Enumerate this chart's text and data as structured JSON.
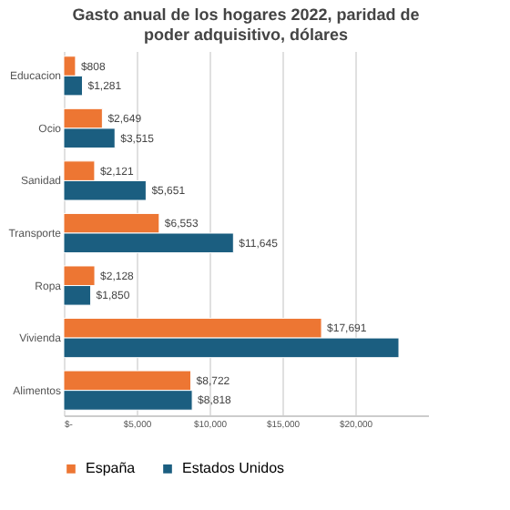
{
  "chart_data": {
    "type": "bar",
    "orientation": "horizontal",
    "title": "Gasto anual de los hogares 2022, paridad de poder adquisitivo, dólares",
    "categories": [
      "Educacion",
      "Ocio",
      "Sanidad",
      "Transporte",
      "Ropa",
      "Vivienda",
      "Alimentos"
    ],
    "series": [
      {
        "name": "España",
        "color": "#ed7633",
        "values": [
          808,
          2649,
          2121,
          6553,
          2128,
          17691,
          8722
        ],
        "value_labels": [
          "$808",
          "$2,649",
          "$2,121",
          "$6,553",
          "$2,128",
          "$17,691",
          "$8,722"
        ]
      },
      {
        "name": "Estados Unidos",
        "color": "#1b5e80",
        "values": [
          1281,
          3515,
          5651,
          11645,
          1850,
          23000,
          8818
        ],
        "value_labels": [
          "$1,281",
          "$3,515",
          "$5,651",
          "$11,645",
          "$1,850",
          null,
          "$8,818"
        ]
      }
    ],
    "xlim": [
      0,
      25000
    ],
    "xticks": [
      {
        "value": 0,
        "label": "$-"
      },
      {
        "value": 5000,
        "label": "$5,000"
      },
      {
        "value": 10000,
        "label": "$10,000"
      },
      {
        "value": 15000,
        "label": "$15,000"
      },
      {
        "value": 20000,
        "label": "$20,000"
      }
    ],
    "grid": "x",
    "legend": "bottom"
  }
}
